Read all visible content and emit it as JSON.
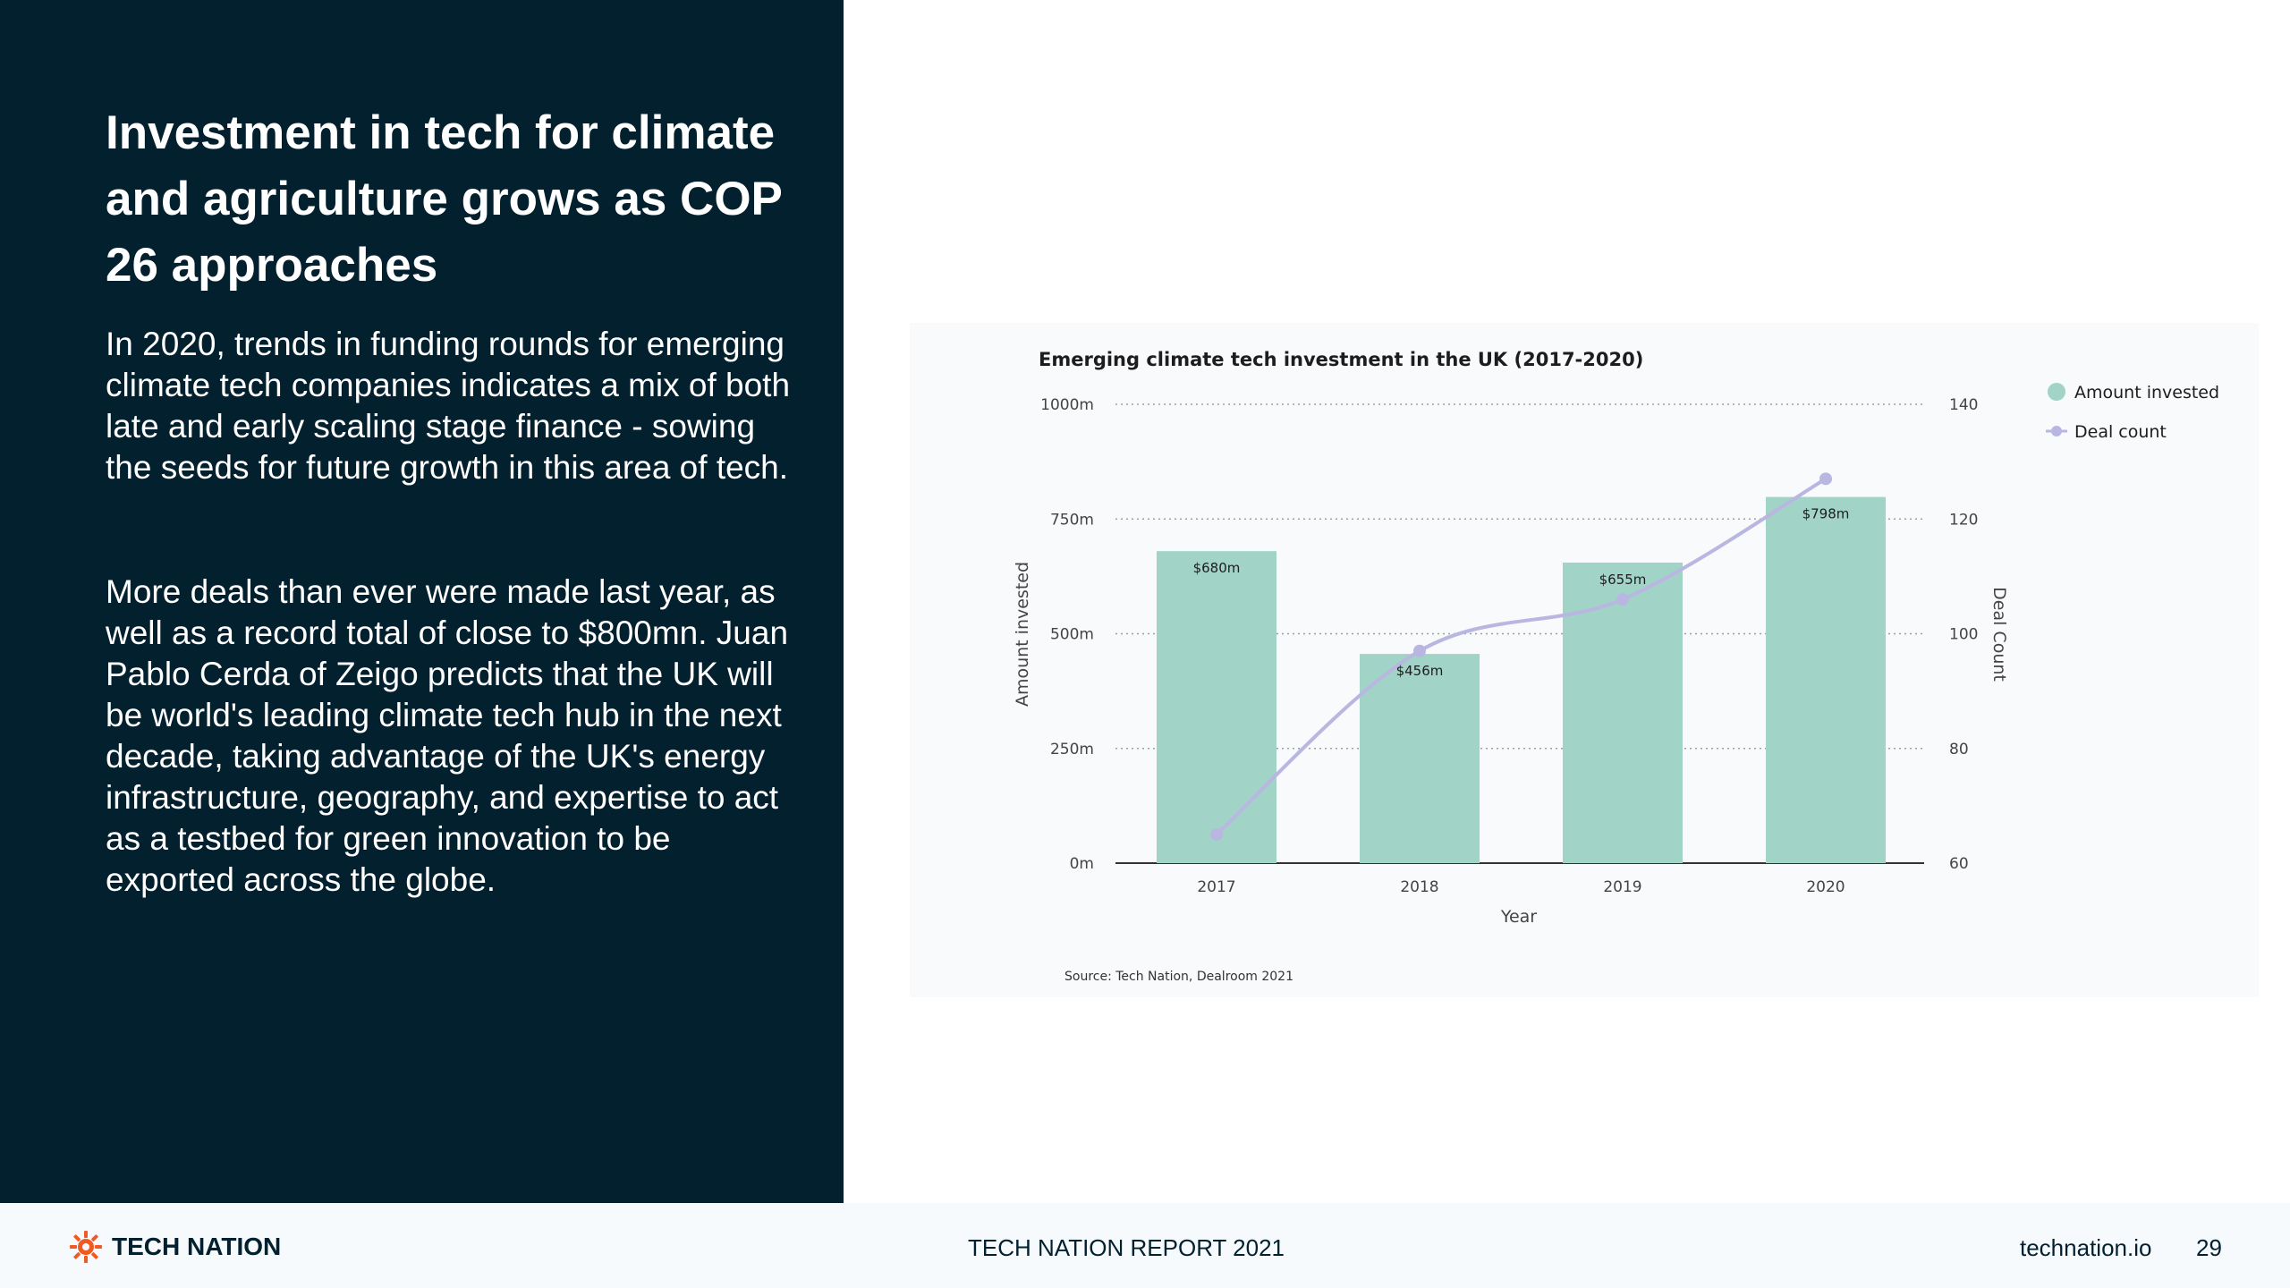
{
  "slide": {
    "title": "Investment in tech for climate and agriculture grows as COP 26 approaches",
    "paragraph_1": "In 2020, trends in funding rounds for emerging climate tech companies indicates a mix of both late and early scaling stage finance - sowing the seeds for future growth in this area of tech.",
    "paragraph_2": "More deals than ever were made last year, as well as a record total of close to $800mn. Juan Pablo Cerda of Zeigo predicts that the UK will be world's leading climate tech hub in the next decade, taking advantage of the UK's energy infrastructure, geography, and expertise to act as a testbed for green innovation to be exported across the globe."
  },
  "footer": {
    "brand": "TECH NATION",
    "report": "TECH NATION REPORT 2021",
    "site": "technation.io",
    "page": "29"
  },
  "colors": {
    "panel": "#03202f",
    "bar": "#a1d3c7",
    "line": "#b9b6e2",
    "brand_orange": "#f15a22"
  },
  "chart_data": {
    "type": "bar",
    "title": "Emerging climate tech investment in the UK (2017-2020)",
    "xlabel": "Year",
    "ylabel": "Amount invested",
    "y2label": "Deal Count",
    "categories": [
      "2017",
      "2018",
      "2019",
      "2020"
    ],
    "ylim": [
      0,
      1000
    ],
    "y_ticks": [
      0,
      250,
      500,
      750,
      1000
    ],
    "y_tick_labels": [
      "0m",
      "250m",
      "500m",
      "750m",
      "1000m"
    ],
    "y2lim": [
      60,
      140
    ],
    "y2_ticks": [
      60,
      80,
      100,
      120,
      140
    ],
    "grid": true,
    "legend_position": "top-right",
    "series": [
      {
        "name": "Amount invested",
        "type": "bar",
        "values": [
          680,
          456,
          655,
          798
        ],
        "labels": [
          "$680m",
          "$456m",
          "$655m",
          "$798m"
        ],
        "color": "#a1d3c7"
      },
      {
        "name": "Deal count",
        "type": "line",
        "axis": "right",
        "values": [
          65,
          97,
          106,
          127
        ],
        "color": "#b9b6e2"
      }
    ],
    "source": "Source: Tech Nation, Dealroom 2021"
  }
}
